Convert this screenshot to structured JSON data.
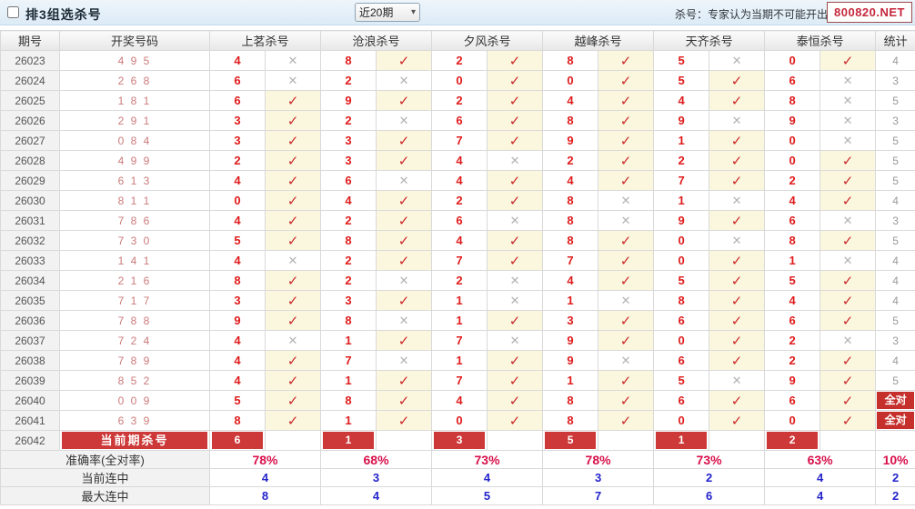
{
  "header": {
    "title": "排3组选杀号",
    "range_value": "近20期",
    "note": "杀号：专家认为当期不可能开出的号",
    "watermark": "800820.NET"
  },
  "table": {
    "columns": [
      "期号",
      "开奖号码",
      "上茗杀号",
      "沧浪杀号",
      "夕风杀号",
      "越峰杀号",
      "天齐杀号",
      "泰恒杀号",
      "统计"
    ],
    "icons": {
      "hit": "✓",
      "miss": "✕"
    },
    "rows": [
      {
        "period": "26023",
        "draw": "4 9 5",
        "kills": [
          [
            "4",
            0
          ],
          [
            "8",
            1
          ],
          [
            "2",
            1
          ],
          [
            "8",
            1
          ],
          [
            "5",
            0
          ],
          [
            "0",
            1
          ]
        ],
        "stat": "4",
        "all": false
      },
      {
        "period": "26024",
        "draw": "2 6 8",
        "kills": [
          [
            "6",
            0
          ],
          [
            "2",
            0
          ],
          [
            "0",
            1
          ],
          [
            "0",
            1
          ],
          [
            "5",
            1
          ],
          [
            "6",
            0
          ]
        ],
        "stat": "3",
        "all": false
      },
      {
        "period": "26025",
        "draw": "1 8 1",
        "kills": [
          [
            "6",
            1
          ],
          [
            "9",
            1
          ],
          [
            "2",
            1
          ],
          [
            "4",
            1
          ],
          [
            "4",
            1
          ],
          [
            "8",
            0
          ]
        ],
        "stat": "5",
        "all": false
      },
      {
        "period": "26026",
        "draw": "2 9 1",
        "kills": [
          [
            "3",
            1
          ],
          [
            "2",
            0
          ],
          [
            "6",
            1
          ],
          [
            "8",
            1
          ],
          [
            "9",
            0
          ],
          [
            "9",
            0
          ]
        ],
        "stat": "3",
        "all": false
      },
      {
        "period": "26027",
        "draw": "0 8 4",
        "kills": [
          [
            "3",
            1
          ],
          [
            "3",
            1
          ],
          [
            "7",
            1
          ],
          [
            "9",
            1
          ],
          [
            "1",
            1
          ],
          [
            "0",
            0
          ]
        ],
        "stat": "5",
        "all": false
      },
      {
        "period": "26028",
        "draw": "4 9 9",
        "kills": [
          [
            "2",
            1
          ],
          [
            "3",
            1
          ],
          [
            "4",
            0
          ],
          [
            "2",
            1
          ],
          [
            "2",
            1
          ],
          [
            "0",
            1
          ]
        ],
        "stat": "5",
        "all": false
      },
      {
        "period": "26029",
        "draw": "6 1 3",
        "kills": [
          [
            "4",
            1
          ],
          [
            "6",
            0
          ],
          [
            "4",
            1
          ],
          [
            "4",
            1
          ],
          [
            "7",
            1
          ],
          [
            "2",
            1
          ]
        ],
        "stat": "5",
        "all": false
      },
      {
        "period": "26030",
        "draw": "8 1 1",
        "kills": [
          [
            "0",
            1
          ],
          [
            "4",
            1
          ],
          [
            "2",
            1
          ],
          [
            "8",
            0
          ],
          [
            "1",
            0
          ],
          [
            "4",
            1
          ]
        ],
        "stat": "4",
        "all": false
      },
      {
        "period": "26031",
        "draw": "7 8 6",
        "kills": [
          [
            "4",
            1
          ],
          [
            "2",
            1
          ],
          [
            "6",
            0
          ],
          [
            "8",
            0
          ],
          [
            "9",
            1
          ],
          [
            "6",
            0
          ]
        ],
        "stat": "3",
        "all": false
      },
      {
        "period": "26032",
        "draw": "7 3 0",
        "kills": [
          [
            "5",
            1
          ],
          [
            "8",
            1
          ],
          [
            "4",
            1
          ],
          [
            "8",
            1
          ],
          [
            "0",
            0
          ],
          [
            "8",
            1
          ]
        ],
        "stat": "5",
        "all": false
      },
      {
        "period": "26033",
        "draw": "1 4 1",
        "kills": [
          [
            "4",
            0
          ],
          [
            "2",
            1
          ],
          [
            "7",
            1
          ],
          [
            "7",
            1
          ],
          [
            "0",
            1
          ],
          [
            "1",
            0
          ]
        ],
        "stat": "4",
        "all": false
      },
      {
        "period": "26034",
        "draw": "2 1 6",
        "kills": [
          [
            "8",
            1
          ],
          [
            "2",
            0
          ],
          [
            "2",
            0
          ],
          [
            "4",
            1
          ],
          [
            "5",
            1
          ],
          [
            "5",
            1
          ]
        ],
        "stat": "4",
        "all": false
      },
      {
        "period": "26035",
        "draw": "7 1 7",
        "kills": [
          [
            "3",
            1
          ],
          [
            "3",
            1
          ],
          [
            "1",
            0
          ],
          [
            "1",
            0
          ],
          [
            "8",
            1
          ],
          [
            "4",
            1
          ]
        ],
        "stat": "4",
        "all": false
      },
      {
        "period": "26036",
        "draw": "7 8 8",
        "kills": [
          [
            "9",
            1
          ],
          [
            "8",
            0
          ],
          [
            "1",
            1
          ],
          [
            "3",
            1
          ],
          [
            "6",
            1
          ],
          [
            "6",
            1
          ]
        ],
        "stat": "5",
        "all": false
      },
      {
        "period": "26037",
        "draw": "7 2 4",
        "kills": [
          [
            "4",
            0
          ],
          [
            "1",
            1
          ],
          [
            "7",
            0
          ],
          [
            "9",
            1
          ],
          [
            "0",
            1
          ],
          [
            "2",
            0
          ]
        ],
        "stat": "3",
        "all": false
      },
      {
        "period": "26038",
        "draw": "7 8 9",
        "kills": [
          [
            "4",
            1
          ],
          [
            "7",
            0
          ],
          [
            "1",
            1
          ],
          [
            "9",
            0
          ],
          [
            "6",
            1
          ],
          [
            "2",
            1
          ]
        ],
        "stat": "4",
        "all": false
      },
      {
        "period": "26039",
        "draw": "8 5 2",
        "kills": [
          [
            "4",
            1
          ],
          [
            "1",
            1
          ],
          [
            "7",
            1
          ],
          [
            "1",
            1
          ],
          [
            "5",
            0
          ],
          [
            "9",
            1
          ]
        ],
        "stat": "5",
        "all": false
      },
      {
        "period": "26040",
        "draw": "0 0 9",
        "kills": [
          [
            "5",
            1
          ],
          [
            "8",
            1
          ],
          [
            "4",
            1
          ],
          [
            "8",
            1
          ],
          [
            "6",
            1
          ],
          [
            "6",
            1
          ]
        ],
        "stat": "全对",
        "all": true
      },
      {
        "period": "26041",
        "draw": "6 3 9",
        "kills": [
          [
            "8",
            1
          ],
          [
            "1",
            1
          ],
          [
            "0",
            1
          ],
          [
            "8",
            1
          ],
          [
            "0",
            1
          ],
          [
            "0",
            1
          ]
        ],
        "stat": "全对",
        "all": true
      }
    ],
    "current": {
      "period": "26042",
      "label": "当前期杀号",
      "kills": [
        "6",
        "1",
        "3",
        "5",
        "1",
        "2"
      ]
    },
    "summary": [
      {
        "label": "准确率(全对率)",
        "values": [
          "78%",
          "68%",
          "73%",
          "78%",
          "73%",
          "63%"
        ],
        "total": "10%",
        "style": "acc"
      },
      {
        "label": "当前连中",
        "values": [
          "4",
          "3",
          "4",
          "3",
          "2",
          "4"
        ],
        "total": "2",
        "style": "streak"
      },
      {
        "label": "最大连中",
        "values": [
          "8",
          "4",
          "5",
          "7",
          "6",
          "4"
        ],
        "total": "2",
        "style": "streak"
      }
    ]
  }
}
